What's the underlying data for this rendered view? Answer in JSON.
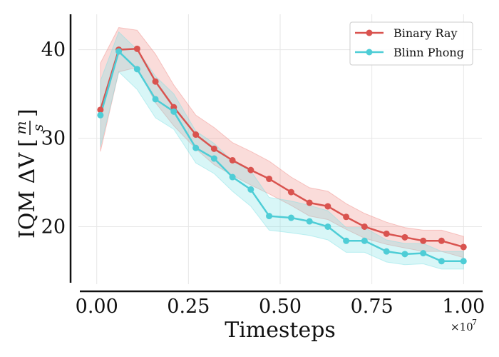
{
  "chart_data": {
    "type": "line",
    "xlabel": "Timesteps",
    "ylabel": "IQM ΔV [m/s]",
    "ylabel_text": "IQM ΔV",
    "ylabel_unit_num": "m",
    "ylabel_unit_den": "s",
    "x_multiplier_label": "×10",
    "x_multiplier_exp": "7",
    "xlim": [
      -0.05,
      1.05
    ],
    "ylim": [
      13.5,
      44
    ],
    "xticks": [
      0.0,
      0.25,
      0.5,
      0.75,
      1.0
    ],
    "xtick_labels": [
      "0.00",
      "0.25",
      "0.50",
      "0.75",
      "1.00"
    ],
    "yticks": [
      20,
      30,
      40
    ],
    "ytick_labels": [
      "20",
      "30",
      "40"
    ],
    "grid": true,
    "legend_position": "top-right",
    "x": [
      0.01,
      0.06,
      0.11,
      0.16,
      0.21,
      0.27,
      0.32,
      0.37,
      0.42,
      0.47,
      0.53,
      0.58,
      0.63,
      0.68,
      0.73,
      0.79,
      0.84,
      0.89,
      0.94,
      1.0
    ],
    "series": [
      {
        "name": "Binary Ray",
        "color": "#d9534f",
        "band_color": "#f08a84",
        "values": [
          33.2,
          40.0,
          40.1,
          36.4,
          33.5,
          30.4,
          28.8,
          27.5,
          26.4,
          25.4,
          23.9,
          22.7,
          22.3,
          21.1,
          20.0,
          19.2,
          18.8,
          18.4,
          18.4,
          17.7
        ],
        "upper": [
          38.5,
          42.5,
          42.2,
          39.5,
          36.0,
          32.6,
          31.2,
          29.5,
          28.5,
          27.4,
          25.6,
          24.4,
          24.0,
          22.6,
          21.5,
          20.5,
          19.9,
          19.6,
          19.6,
          18.9
        ],
        "lower": [
          28.5,
          37.5,
          38.0,
          34.0,
          31.4,
          28.8,
          27.0,
          25.8,
          24.7,
          23.7,
          22.4,
          21.2,
          20.8,
          19.7,
          18.7,
          18.0,
          17.6,
          17.2,
          17.2,
          16.5
        ]
      },
      {
        "name": "Blinn Phong",
        "color": "#4ecdd6",
        "band_color": "#7fe0e4",
        "values": [
          32.6,
          39.8,
          37.8,
          34.4,
          33.0,
          28.9,
          27.7,
          25.6,
          24.2,
          21.2,
          21.0,
          20.6,
          20.0,
          18.4,
          18.4,
          17.2,
          16.9,
          17.0,
          16.1,
          16.1
        ],
        "upper": [
          36.5,
          42.0,
          40.0,
          37.0,
          35.0,
          30.8,
          29.4,
          27.4,
          26.3,
          23.3,
          22.9,
          22.4,
          21.8,
          19.9,
          19.9,
          18.5,
          18.1,
          18.1,
          17.2,
          17.2
        ],
        "lower": [
          29.0,
          37.5,
          35.5,
          32.3,
          31.0,
          27.2,
          26.0,
          24.0,
          22.3,
          19.6,
          19.3,
          19.0,
          18.5,
          17.1,
          17.1,
          16.0,
          15.7,
          15.8,
          15.2,
          15.2
        ]
      }
    ]
  }
}
